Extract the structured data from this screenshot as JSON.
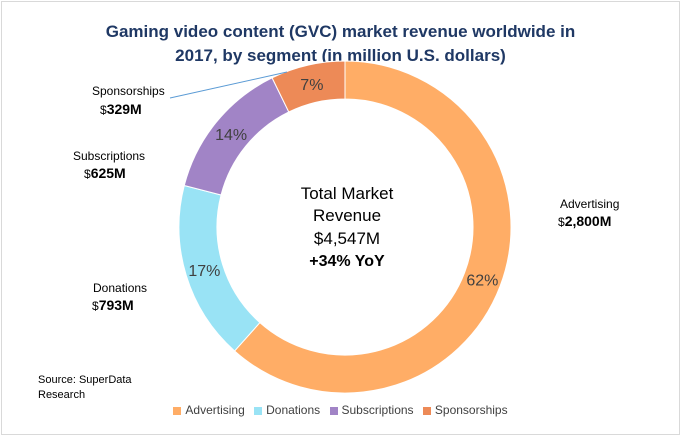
{
  "chart_data": {
    "type": "pie",
    "variant": "donut",
    "title": "Gaming video content (GVC) market revenue worldwide in 2017, by segment (in million U.S. dollars)",
    "title_lines": [
      "Gaming video content (GVC) market revenue worldwide in",
      "2017, by segment (in million U.S. dollars)"
    ],
    "categories": [
      "Advertising",
      "Donations",
      "Subscriptions",
      "Sponsorships"
    ],
    "values": [
      2800,
      793,
      625,
      329
    ],
    "percent_labels": [
      "62%",
      "17%",
      "14%",
      "7%"
    ],
    "value_labels": [
      {
        "name": "Advertising",
        "currency": "$",
        "amount": "2,800M"
      },
      {
        "name": "Donations",
        "currency": "$",
        "amount": "793M"
      },
      {
        "name": "Subscriptions",
        "currency": "$",
        "amount": "625M"
      },
      {
        "name": "Sponsorships",
        "currency": "$",
        "amount": "329M"
      }
    ],
    "colors": [
      "#ffad66",
      "#99e3f5",
      "#a184c6",
      "#ed8a57"
    ],
    "center_text": {
      "line1": "Total Market",
      "line2": "Revenue",
      "line3": "$4,547M",
      "line4": "+34% YoY"
    },
    "legend_position": "bottom",
    "source": [
      "Source: SuperData",
      "Research"
    ]
  }
}
